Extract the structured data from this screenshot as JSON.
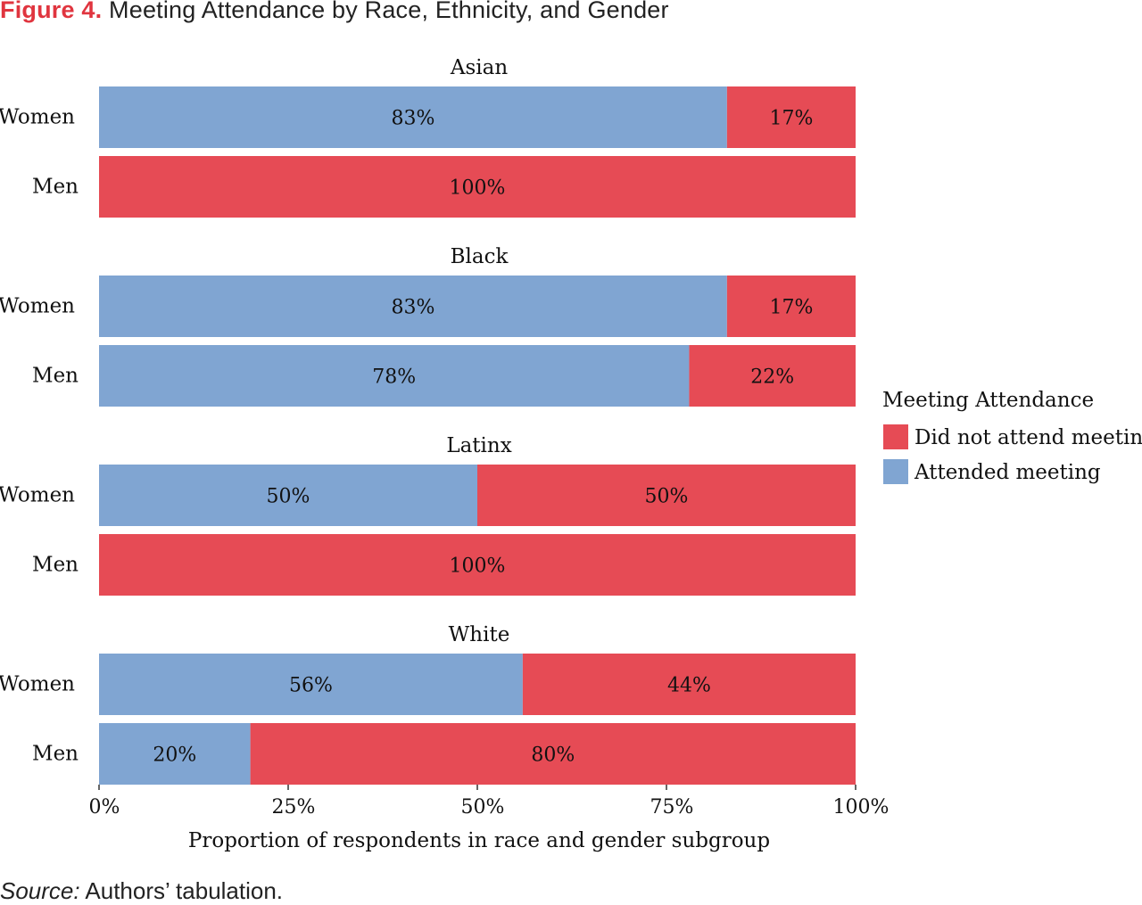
{
  "figure": {
    "label": "Figure 4.",
    "title": "Meeting Attendance by Race, Ethnicity, and Gender"
  },
  "source": {
    "label": "Source:",
    "text": "Authors’ tabulation."
  },
  "chart_data": {
    "type": "bar",
    "orientation": "horizontal",
    "stacked": true,
    "normalized": true,
    "xlabel": "Proportion of respondents in race and gender subgroup",
    "xlim": [
      0,
      100
    ],
    "xticks": [
      0,
      25,
      50,
      75,
      100
    ],
    "xtick_labels": [
      "0%",
      "25%",
      "50%",
      "75%",
      "100%"
    ],
    "grid": false,
    "legend": {
      "title": "Meeting Attendance",
      "placement": "right",
      "entries": [
        {
          "name": "Did not attend meeting",
          "color": "#e64b55"
        },
        {
          "name": "Attended meeting",
          "color": "#80a5d2"
        }
      ]
    },
    "panels": [
      {
        "title": "Asian",
        "rows": [
          {
            "label": "Women",
            "attended": 83,
            "did_not_attend": 17
          },
          {
            "label": "Men",
            "attended": 0,
            "did_not_attend": 100
          }
        ]
      },
      {
        "title": "Black",
        "rows": [
          {
            "label": "Women",
            "attended": 83,
            "did_not_attend": 17
          },
          {
            "label": "Men",
            "attended": 78,
            "did_not_attend": 22
          }
        ]
      },
      {
        "title": "Latinx",
        "rows": [
          {
            "label": "Women",
            "attended": 50,
            "did_not_attend": 50
          },
          {
            "label": "Men",
            "attended": 0,
            "did_not_attend": 100
          }
        ]
      },
      {
        "title": "White",
        "rows": [
          {
            "label": "Women",
            "attended": 56,
            "did_not_attend": 44
          },
          {
            "label": "Men",
            "attended": 20,
            "did_not_attend": 80
          }
        ]
      }
    ]
  }
}
